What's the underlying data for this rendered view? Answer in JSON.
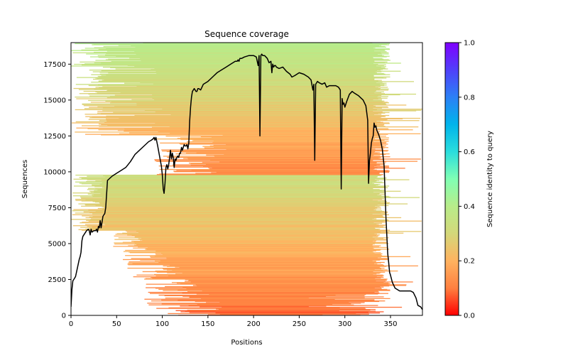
{
  "chart_data": {
    "type": "heatmap",
    "title": "Sequence coverage",
    "xlabel": "Positions",
    "ylabel": "Sequences",
    "xlim": [
      0,
      385
    ],
    "ylim": [
      0,
      19000
    ],
    "grid": false,
    "xticks": [
      0,
      50,
      100,
      150,
      200,
      250,
      300,
      350
    ],
    "yticks": [
      0,
      2500,
      5000,
      7500,
      10000,
      12500,
      15000,
      17500
    ],
    "colorbar": {
      "label": "Sequence identity to query",
      "range": [
        0,
        1
      ],
      "ticks": [
        "0.0",
        "0.2",
        "0.4",
        "0.6",
        "0.8",
        "1.0"
      ],
      "colormap": "rainbow_r",
      "stops": [
        "#ff0000",
        "#ff8040",
        "#ffb360",
        "#d4d87a",
        "#b8ec8a",
        "#80ffb4",
        "#2adddd",
        "#00b4eb",
        "#2c80f5",
        "#5040fa",
        "#8000ff"
      ]
    },
    "coverage_blocks": [
      {
        "name": "lower-cluster",
        "seq_range": [
          0,
          9800
        ],
        "identity_low": 0.08,
        "identity_high": 0.33
      },
      {
        "name": "upper-cluster",
        "seq_range": [
          9800,
          19000
        ],
        "identity_low": 0.12,
        "identity_high": 0.4
      }
    ],
    "coverage_line": {
      "name": "coverage",
      "color": "#000000",
      "x": [
        0,
        1,
        2,
        3,
        5,
        7,
        9,
        10,
        11,
        12,
        13,
        15,
        17,
        19,
        20,
        21,
        22,
        23,
        25,
        27,
        28,
        29,
        30,
        31,
        32,
        33,
        34,
        35,
        36,
        37,
        38,
        40,
        45,
        50,
        55,
        60,
        65,
        70,
        75,
        80,
        85,
        88,
        90,
        91,
        92,
        93,
        95,
        97,
        99,
        100,
        101,
        102,
        103,
        104,
        105,
        106,
        107,
        108,
        109,
        110,
        111,
        112,
        113,
        114,
        115,
        116,
        117,
        118,
        119,
        120,
        121,
        122,
        123,
        124,
        125,
        126,
        127,
        128,
        129,
        130,
        131,
        132,
        133,
        135,
        137,
        138,
        139,
        140,
        142,
        145,
        150,
        155,
        160,
        165,
        170,
        175,
        180,
        182,
        183,
        184,
        185,
        187,
        190,
        195,
        200,
        203,
        205,
        206,
        207,
        208,
        209,
        210,
        212,
        215,
        217,
        219,
        220,
        221,
        222,
        223,
        224,
        225,
        228,
        232,
        236,
        240,
        242,
        245,
        250,
        255,
        260,
        263,
        265,
        266,
        267,
        268,
        269,
        270,
        272,
        275,
        278,
        280,
        283,
        285,
        290,
        293,
        295,
        296,
        297,
        298,
        299,
        300,
        302,
        305,
        308,
        310,
        315,
        320,
        323,
        325,
        326,
        327,
        328,
        329,
        330,
        331,
        332,
        333,
        334,
        335,
        337,
        339,
        341,
        343,
        345,
        347,
        348,
        349,
        350,
        352,
        355,
        360,
        365,
        368,
        370,
        372,
        375,
        378,
        380,
        383,
        385
      ],
      "y": [
        600,
        1800,
        2400,
        2500,
        2700,
        3300,
        3900,
        4100,
        4400,
        5200,
        5500,
        5700,
        5900,
        6000,
        5900,
        5600,
        6000,
        5800,
        5900,
        5900,
        6000,
        5800,
        6200,
        6100,
        6600,
        6100,
        6500,
        6900,
        7000,
        7100,
        7500,
        9400,
        9700,
        9900,
        10100,
        10300,
        10700,
        11200,
        11500,
        11800,
        12100,
        12200,
        12300,
        12400,
        12200,
        12400,
        11800,
        11100,
        10400,
        9800,
        8800,
        8500,
        9200,
        10300,
        10500,
        10200,
        10500,
        11000,
        11500,
        10900,
        11300,
        11000,
        10300,
        10900,
        10800,
        11000,
        11100,
        11000,
        11300,
        11300,
        11700,
        11500,
        11700,
        11900,
        11800,
        11800,
        11900,
        11600,
        12000,
        13500,
        14500,
        15200,
        15600,
        15800,
        15600,
        15600,
        15800,
        15800,
        15700,
        16100,
        16300,
        16600,
        16900,
        17100,
        17300,
        17500,
        17700,
        17700,
        17800,
        17700,
        17900,
        17900,
        18000,
        18100,
        18100,
        18000,
        17400,
        18100,
        12500,
        18100,
        18200,
        18100,
        18100,
        17900,
        17600,
        17700,
        16900,
        17500,
        17300,
        17400,
        17400,
        17300,
        17200,
        17300,
        17000,
        16800,
        16600,
        16700,
        16900,
        16800,
        16600,
        16400,
        15700,
        16100,
        10800,
        16100,
        16200,
        16300,
        16200,
        16100,
        16200,
        15900,
        16000,
        16000,
        16000,
        15900,
        15700,
        8800,
        15100,
        14700,
        14800,
        14500,
        14900,
        15400,
        15600,
        15500,
        15300,
        15000,
        14600,
        13600,
        9200,
        10800,
        11300,
        12000,
        12300,
        12500,
        13400,
        13100,
        13200,
        12900,
        12600,
        12200,
        11600,
        10400,
        6800,
        4300,
        3700,
        3000,
        2800,
        2300,
        1900,
        1700,
        1700,
        1700,
        1700,
        1700,
        1600,
        1200,
        700,
        600,
        400,
        200,
        0
      ]
    }
  }
}
